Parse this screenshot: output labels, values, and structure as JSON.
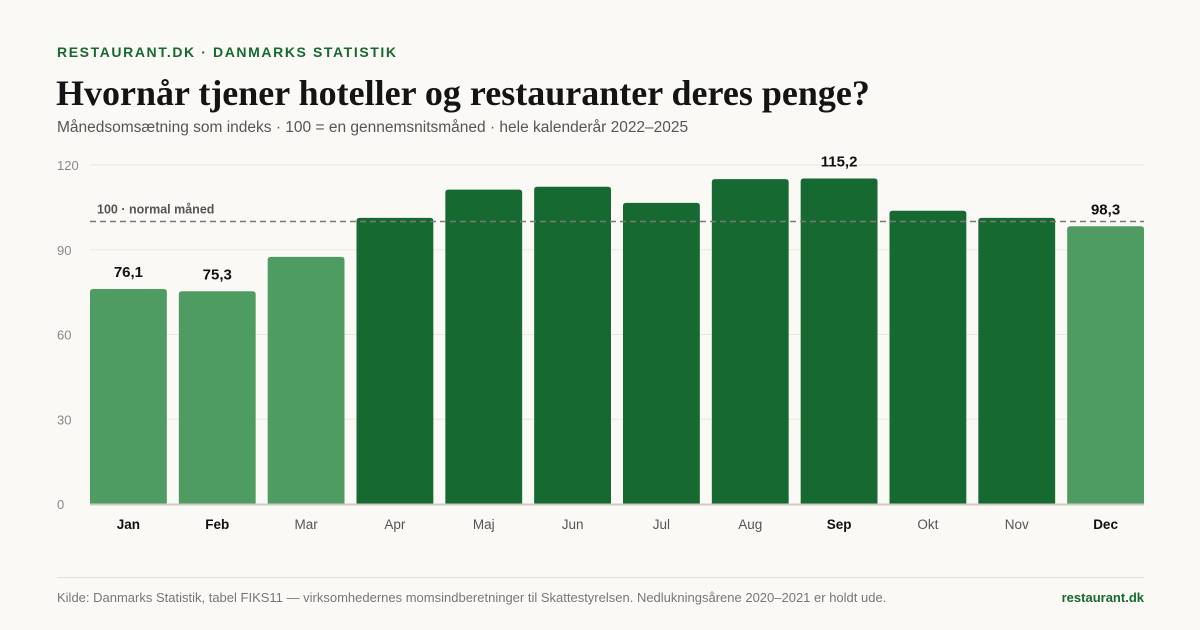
{
  "header": {
    "kicker": "RESTAURANT.DK · DANMARKS STATISTIK",
    "title": "Hvornår tjener hoteller og restauranter deres penge?",
    "subtitle": "Månedsomsætning som indeks · 100 = en gennemsnitsmåned · hele kalenderår 2022–2025"
  },
  "footer": {
    "source": "Kilde: Danmarks Statistik, tabel FIKS11 — virksomhedernes momsindberetninger til Skattestyrelsen. Nedlukningsårene 2020–2021 er holdt ude.",
    "brand": "restaurant.dk"
  },
  "colors": {
    "bar_high": "#176932",
    "bar_low": "#4f9c63",
    "text": "#1a1a1a",
    "muted": "#888888"
  },
  "chart_data": {
    "type": "bar",
    "categories": [
      "Jan",
      "Feb",
      "Mar",
      "Apr",
      "Maj",
      "Jun",
      "Jul",
      "Aug",
      "Sep",
      "Okt",
      "Nov",
      "Dec"
    ],
    "values": [
      76.1,
      75.3,
      87.5,
      101.3,
      111.3,
      112.3,
      106.6,
      115.0,
      115.2,
      103.8,
      101.3,
      98.3
    ],
    "data_labels": [
      "76,1",
      "75,3",
      null,
      null,
      null,
      null,
      null,
      null,
      "115,2",
      null,
      null,
      "98,3"
    ],
    "bold_categories": [
      "Jan",
      "Feb",
      "Sep",
      "Dec"
    ],
    "ylim": [
      0,
      120
    ],
    "yticks": [
      0,
      30,
      60,
      90,
      120
    ],
    "grid": true,
    "reference_line": {
      "value": 100,
      "label": "100 · normal måned",
      "style": "dashed"
    },
    "title": "Hvornår tjener hoteller og restauranter deres penge?",
    "xlabel": "",
    "ylabel": ""
  }
}
